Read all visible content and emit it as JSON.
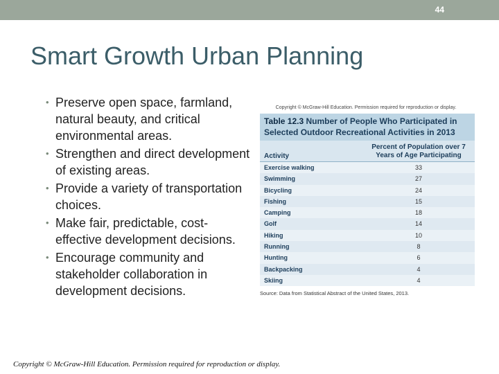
{
  "slide": {
    "number": "44",
    "title": "Smart Growth Urban Planning",
    "bullets": [
      "Preserve open space, farmland, natural beauty, and critical environmental areas.",
      "Strengthen and direct development of existing areas.",
      "Provide a variety of transportation choices.",
      "Make fair, predictable, cost-effective development decisions.",
      "Encourage community and stakeholder collaboration in development decisions."
    ],
    "footer": "Copyright © McGraw-Hill Education. Permission required for reproduction or display."
  },
  "figure": {
    "copyright": "Copyright © McGraw-Hill Education. Permission required for reproduction or display.",
    "table_number": "Table 12.3",
    "table_title": "Number of People Who Participated in Selected Outdoor Recreational Activities in 2013",
    "col_activity": "Activity",
    "col_percent": "Percent of Population over 7 Years of Age Participating",
    "rows": [
      {
        "activity": "Exercise walking",
        "value": "33"
      },
      {
        "activity": "Swimming",
        "value": "27"
      },
      {
        "activity": "Bicycling",
        "value": "24"
      },
      {
        "activity": "Fishing",
        "value": "15"
      },
      {
        "activity": "Camping",
        "value": "18"
      },
      {
        "activity": "Golf",
        "value": "14"
      },
      {
        "activity": "Hiking",
        "value": "10"
      },
      {
        "activity": "Running",
        "value": "8"
      },
      {
        "activity": "Hunting",
        "value": "6"
      },
      {
        "activity": "Backpacking",
        "value": "4"
      },
      {
        "activity": "Skiing",
        "value": "4"
      }
    ],
    "source": "Source: Data from Statistical Abstract of the United States, 2013."
  }
}
